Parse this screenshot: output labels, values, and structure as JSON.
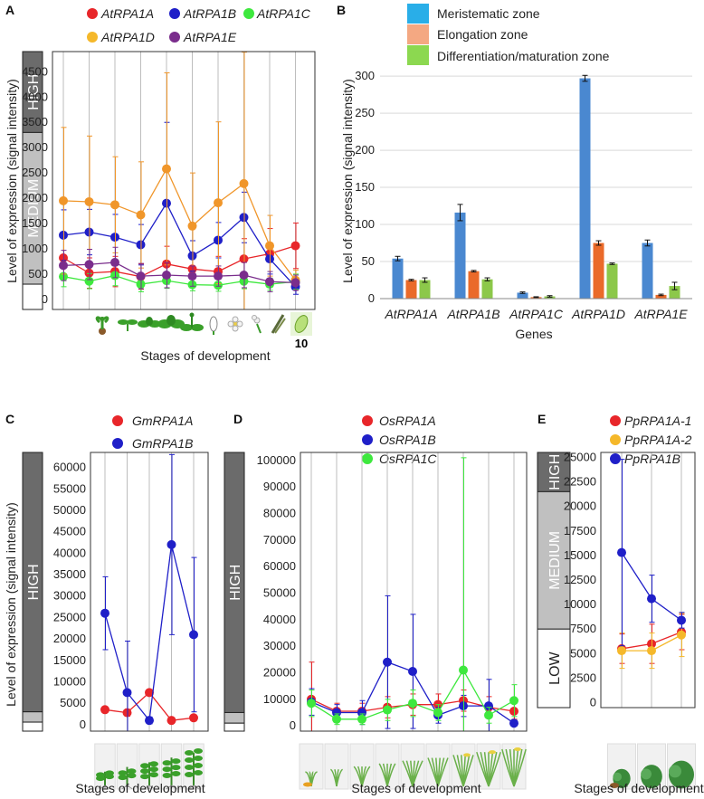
{
  "figure": {
    "panels": [
      "A",
      "B",
      "C",
      "D",
      "E"
    ],
    "ylabel_expression": "Level of expression (signal intensity)",
    "xlabel_stages": "Stages of development"
  },
  "chart_data": [
    {
      "panel": "A",
      "type": "line",
      "title": "",
      "ylabel": "Level of  expression (signal intensity)",
      "xlabel": "Stages of development",
      "ylim": [
        -200,
        4900
      ],
      "yticks": [
        0,
        500,
        1000,
        1500,
        2000,
        2500,
        3000,
        3500,
        4000,
        4500
      ],
      "x": [
        1,
        2,
        3,
        4,
        5,
        6,
        7,
        8,
        9,
        10
      ],
      "x_highlight_label": "10",
      "bands": [
        {
          "label": "HIGH",
          "from": 3300,
          "to": 4900,
          "color": "#6b6b6b"
        },
        {
          "label": "MEDIUM",
          "from": 300,
          "to": 3300,
          "color": "#c0c0c0"
        },
        {
          "label": "",
          "from": -200,
          "to": 300,
          "color": "#ffffff"
        }
      ],
      "series": [
        {
          "name": "AtRPA1A",
          "color": "#e8262a",
          "values": [
            820,
            520,
            550,
            450,
            700,
            600,
            550,
            800,
            900,
            1060
          ],
          "err": [
            400,
            300,
            300,
            250,
            350,
            300,
            300,
            400,
            500,
            450
          ]
        },
        {
          "name": "AtRPA1B",
          "color": "#1f1fc8",
          "values": [
            1270,
            1330,
            1230,
            1080,
            1900,
            860,
            1170,
            1620,
            800,
            250
          ],
          "err": [
            500,
            450,
            450,
            400,
            1600,
            300,
            350,
            500,
            300,
            150
          ]
        },
        {
          "name": "AtRPA1C",
          "color": "#3ee83e",
          "values": [
            450,
            360,
            470,
            300,
            370,
            290,
            280,
            360,
            300,
            350
          ],
          "err": [
            200,
            150,
            200,
            150,
            150,
            120,
            120,
            150,
            120,
            150
          ]
        },
        {
          "name": "AtRPA1D",
          "color": "#f0962a",
          "values": [
            1950,
            1930,
            1870,
            1670,
            2580,
            1450,
            1910,
            2290,
            1060,
            380
          ],
          "err": [
            1450,
            1300,
            950,
            1050,
            1900,
            1050,
            1600,
            2600,
            600,
            200
          ]
        },
        {
          "name": "AtRPA1E",
          "color": "#7a2d8c",
          "values": [
            670,
            690,
            730,
            460,
            480,
            460,
            460,
            480,
            350,
            330
          ],
          "err": [
            300,
            300,
            300,
            250,
            250,
            200,
            200,
            250,
            200,
            150
          ]
        }
      ]
    },
    {
      "panel": "B",
      "type": "bar",
      "title": "",
      "ylabel": "Level of  expression (signal intensity)",
      "xlabel": "Genes",
      "ylim": [
        0,
        305
      ],
      "yticks": [
        0,
        50,
        100,
        150,
        200,
        250,
        300
      ],
      "categories": [
        "AtRPA1A",
        "AtRPA1B",
        "AtRPA1C",
        "AtRPA1D",
        "AtRPA1E"
      ],
      "series": [
        {
          "name": "Meristematic zone",
          "color": "#4a88d0",
          "legend_color": "#29aee8",
          "values": [
            54,
            116,
            8,
            297,
            75
          ],
          "err": [
            3,
            11,
            1,
            4,
            4
          ]
        },
        {
          "name": "Elongation zone",
          "color": "#ea6a2a",
          "legend_color": "#f4a882",
          "values": [
            25,
            37,
            2,
            75,
            5
          ],
          "err": [
            1,
            1,
            0.5,
            3,
            1
          ]
        },
        {
          "name": "Differentiation/maturation zone",
          "color": "#8cc84a",
          "legend_color": "#8cd850",
          "values": [
            25,
            26,
            3,
            47,
            17
          ],
          "err": [
            3,
            2,
            1,
            1,
            5
          ]
        }
      ]
    },
    {
      "panel": "C",
      "type": "line",
      "title": "",
      "ylabel": "Level of  expression (signal intensity)",
      "xlabel": "Stages of development",
      "ylim": [
        -1500,
        63500
      ],
      "yticks": [
        0,
        5000,
        10000,
        15000,
        20000,
        25000,
        30000,
        35000,
        40000,
        45000,
        50000,
        55000,
        60000
      ],
      "x": [
        1,
        2,
        3,
        4,
        5
      ],
      "bands": [
        {
          "label": "HIGH",
          "from": 3000,
          "to": 63500,
          "color": "#6b6b6b"
        },
        {
          "label": "",
          "from": 600,
          "to": 3000,
          "color": "#c0c0c0"
        },
        {
          "label": "",
          "from": -1500,
          "to": 600,
          "color": "#ffffff"
        }
      ],
      "series": [
        {
          "name": "GmRPA1A",
          "color": "#e8262a",
          "values": [
            3500,
            2800,
            7500,
            1000,
            1600
          ],
          "err": [
            400,
            800,
            600,
            500,
            700
          ]
        },
        {
          "name": "GmRPA1B",
          "color": "#1f1fc8",
          "values": [
            26000,
            7500,
            1000,
            42000,
            21000
          ],
          "err": [
            8500,
            12000,
            800,
            21000,
            18000
          ]
        }
      ]
    },
    {
      "panel": "D",
      "type": "line",
      "title": "",
      "ylabel": "",
      "xlabel": "Stages of development",
      "ylim": [
        -2000,
        103000
      ],
      "yticks": [
        0,
        10000,
        20000,
        30000,
        40000,
        50000,
        60000,
        70000,
        80000,
        90000,
        100000
      ],
      "x": [
        1,
        2,
        3,
        4,
        5,
        6,
        7,
        8,
        9
      ],
      "bands": [
        {
          "label": "HIGH",
          "from": 5000,
          "to": 103000,
          "color": "#6b6b6b"
        },
        {
          "label": "",
          "from": 1000,
          "to": 5000,
          "color": "#c0c0c0"
        },
        {
          "label": "",
          "from": -2000,
          "to": 1000,
          "color": "#ffffff"
        }
      ],
      "series": [
        {
          "name": "OsRPA1A",
          "color": "#e8262a",
          "values": [
            10000,
            5500,
            5500,
            7000,
            8000,
            8000,
            9500,
            7000,
            5500
          ],
          "err": [
            14000,
            3000,
            3000,
            4000,
            4000,
            4000,
            4000,
            4000,
            3000
          ]
        },
        {
          "name": "OsRPA1B",
          "color": "#1f1fc8",
          "values": [
            9000,
            5000,
            5000,
            24000,
            20500,
            4000,
            7500,
            7500,
            1000
          ],
          "err": [
            5000,
            3000,
            4500,
            25000,
            21500,
            3000,
            4000,
            10000,
            1000
          ]
        },
        {
          "name": "OsRPA1C",
          "color": "#3ee83e",
          "values": [
            8500,
            2500,
            2500,
            6000,
            8500,
            5000,
            21000,
            4000,
            9500
          ],
          "err": [
            5000,
            2000,
            2000,
            4000,
            5000,
            3000,
            80000,
            3000,
            6000
          ]
        }
      ]
    },
    {
      "panel": "E",
      "type": "line",
      "title": "",
      "ylabel": "",
      "xlabel": "Stages of development",
      "ylim": [
        -500,
        25500
      ],
      "yticks": [
        0,
        2500,
        5000,
        7500,
        10000,
        12500,
        15000,
        17500,
        20000,
        22500,
        25000
      ],
      "x": [
        1,
        2,
        3
      ],
      "bands": [
        {
          "label": "HIGH",
          "from": 21500,
          "to": 25500,
          "color": "#6b6b6b"
        },
        {
          "label": "MEDIUM",
          "from": 7500,
          "to": 21500,
          "color": "#c0c0c0"
        },
        {
          "label": "LOW",
          "from": -500,
          "to": 7500,
          "color": "#ffffff"
        }
      ],
      "series": [
        {
          "name": "PpRPA1A-1",
          "color": "#e8262a",
          "values": [
            5500,
            6000,
            7200
          ],
          "err": [
            1500,
            2000,
            1800
          ]
        },
        {
          "name": "PpRPA1A-2",
          "color": "#f5b82a",
          "values": [
            5300,
            5300,
            6900
          ],
          "err": [
            1800,
            1800,
            2200
          ]
        },
        {
          "name": "PpRPA1B",
          "color": "#1f1fc8",
          "values": [
            15300,
            10600,
            8400
          ],
          "err": [
            9500,
            2400,
            800
          ]
        }
      ]
    }
  ]
}
